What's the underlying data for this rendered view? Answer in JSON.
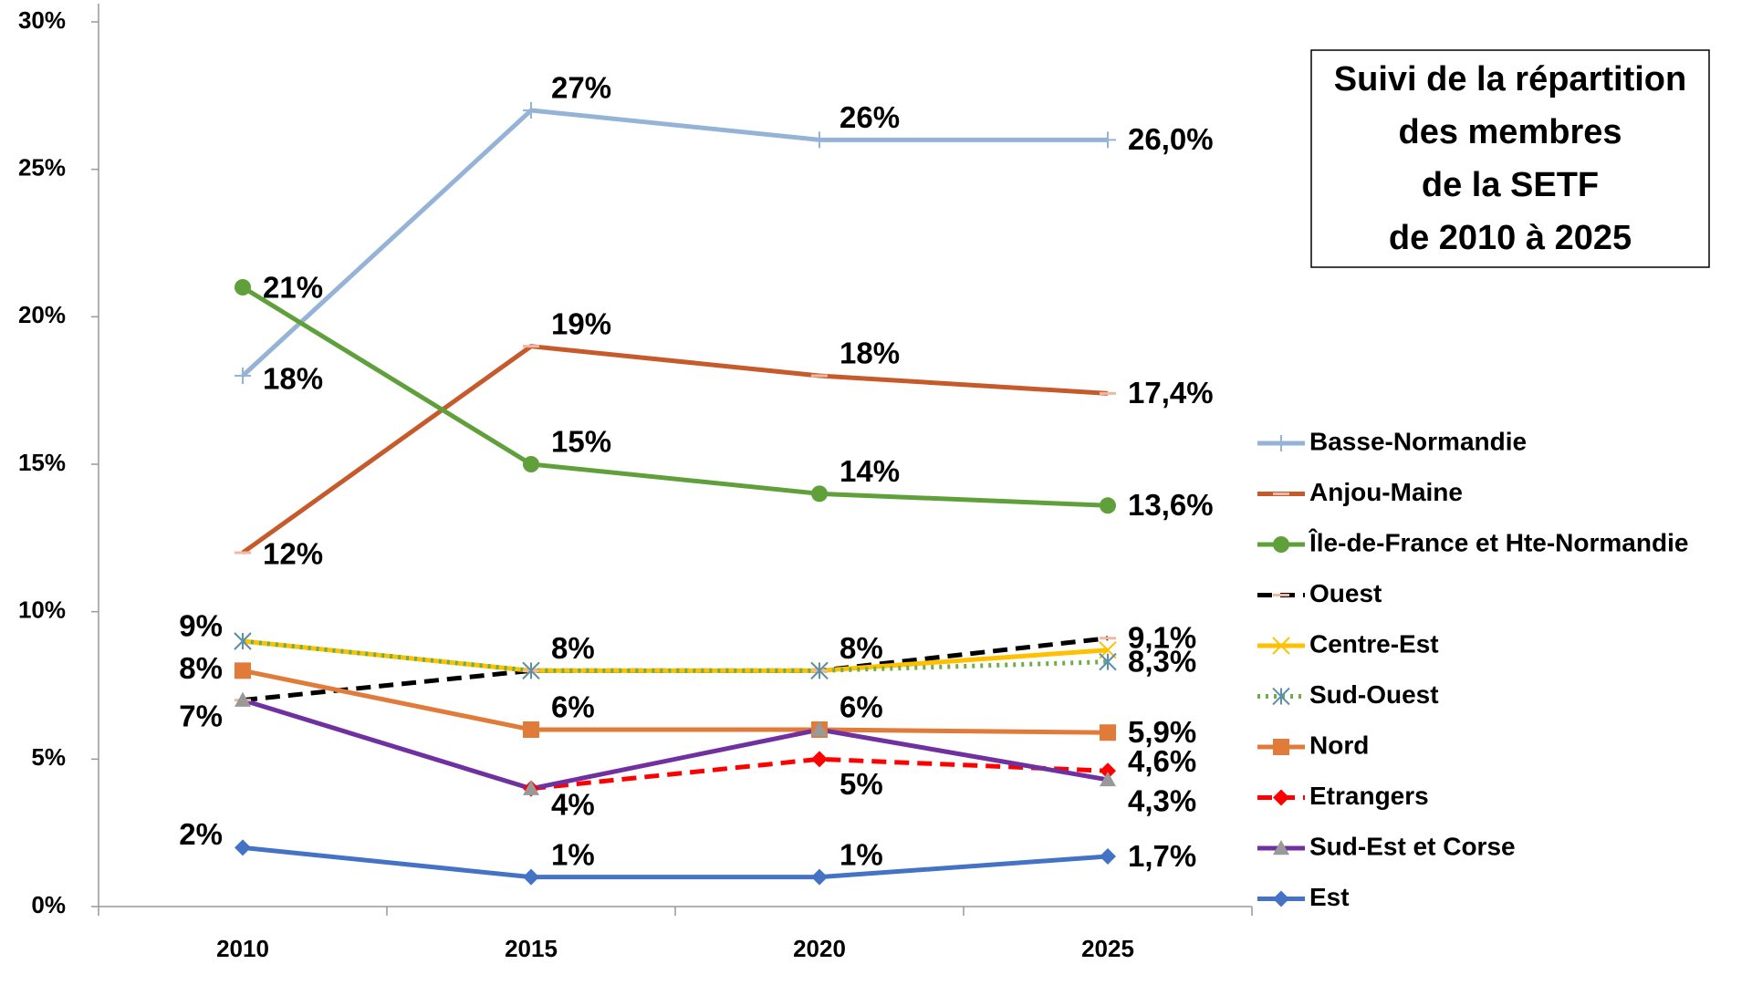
{
  "chart_data": {
    "type": "line",
    "title": [
      "Suivi de la répartition",
      "des membres",
      "de la SETF",
      "de 2010 à 2025"
    ],
    "categories": [
      "2010",
      "2015",
      "2020",
      "2025"
    ],
    "ylim": [
      0,
      30
    ],
    "yticks": [
      {
        "value": 0,
        "label": "0%"
      },
      {
        "value": 5,
        "label": "5%"
      },
      {
        "value": 10,
        "label": "10%"
      },
      {
        "value": 15,
        "label": "15%"
      },
      {
        "value": 20,
        "label": "20%"
      },
      {
        "value": 25,
        "label": "25%"
      },
      {
        "value": 30,
        "label": "30%"
      }
    ],
    "grid": false,
    "legend": "right",
    "series": [
      {
        "name": "Basse-Normandie",
        "color": "#95b3d7",
        "marker": "plus",
        "dash": "solid",
        "values": [
          18,
          27,
          26,
          26.0
        ],
        "value_labels": [
          "18%",
          "27%",
          "26%",
          "26,0%"
        ]
      },
      {
        "name": "Anjou-Maine",
        "color": "#c65a2a",
        "marker": "dash",
        "dash": "solid",
        "values": [
          12,
          19,
          18,
          17.4
        ],
        "value_labels": [
          "12%",
          "19%",
          "18%",
          "17,4%"
        ]
      },
      {
        "name": "Île-de-France et Hte-Normandie",
        "color": "#5fa03a",
        "marker": "circle",
        "dash": "solid",
        "values": [
          21,
          15,
          14,
          13.6
        ],
        "value_labels": [
          "21%",
          "15%",
          "14%",
          "13,6%"
        ]
      },
      {
        "name": "Ouest",
        "color": "#000000",
        "marker": "dash",
        "dash": "dashed",
        "values": [
          7,
          8,
          8,
          9.1
        ],
        "value_labels": [
          "7%",
          null,
          null,
          "9,1%"
        ]
      },
      {
        "name": "Centre-Est",
        "color": "#ffc000",
        "marker": "x",
        "dash": "solid",
        "values": [
          9,
          8,
          8,
          8.7
        ],
        "value_labels": [
          null,
          null,
          null,
          null
        ]
      },
      {
        "name": "Sud-Ouest",
        "color": "#70ad47",
        "marker": "star",
        "dash": "dotted",
        "values": [
          9,
          8,
          8,
          8.3
        ],
        "value_labels": [
          "9%",
          "8%",
          "8%",
          "8,3%"
        ]
      },
      {
        "name": "Nord",
        "color": "#e07b39",
        "marker": "square",
        "dash": "solid",
        "values": [
          8,
          6,
          6,
          5.9
        ],
        "value_labels": [
          "8%",
          "6%",
          "6%",
          "5,9%"
        ]
      },
      {
        "name": "Etrangers",
        "color": "#ff0000",
        "marker": "diamond",
        "dash": "dashed",
        "values": [
          null,
          4,
          5,
          4.6
        ],
        "value_labels": [
          null,
          null,
          "5%",
          "4,6%"
        ]
      },
      {
        "name": "Sud-Est et Corse",
        "color": "#7030a0",
        "marker": "triangle",
        "dash": "solid",
        "values": [
          7,
          4,
          6,
          4.3
        ],
        "value_labels": [
          null,
          "4%",
          null,
          "4,3%"
        ]
      },
      {
        "name": "Est",
        "color": "#4472c4",
        "marker": "diamond",
        "dash": "solid",
        "values": [
          2,
          1,
          1,
          1.7
        ],
        "value_labels": [
          "2%",
          "1%",
          "1%",
          "1,7%"
        ]
      }
    ]
  }
}
